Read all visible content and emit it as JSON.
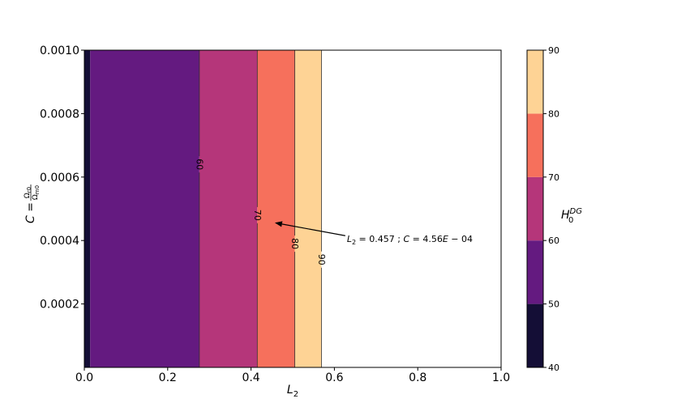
{
  "chart_data": {
    "type": "contourf",
    "x_label": {
      "base": "L",
      "sub": "2"
    },
    "y_label": {
      "prefix": "C =",
      "num_base": "Ω",
      "num_sub": "r0",
      "den_base": "Ω",
      "den_sub": "m0"
    },
    "colorbar_label": {
      "base": "H",
      "sub": "0",
      "sup": "DG"
    },
    "xlim": [
      0.0,
      1.0
    ],
    "ylim": [
      0.0,
      0.001
    ],
    "x_ticks": [
      {
        "value": 0.0,
        "label": "0.0"
      },
      {
        "value": 0.2,
        "label": "0.2"
      },
      {
        "value": 0.4,
        "label": "0.4"
      },
      {
        "value": 0.6,
        "label": "0.6"
      },
      {
        "value": 0.8,
        "label": "0.8"
      },
      {
        "value": 1.0,
        "label": "1.0"
      }
    ],
    "y_ticks": [
      {
        "value": 0.0002,
        "label": "0.0002"
      },
      {
        "value": 0.0004,
        "label": "0.0004"
      },
      {
        "value": 0.0006,
        "label": "0.0006"
      },
      {
        "value": 0.0008,
        "label": "0.0008"
      },
      {
        "value": 0.001,
        "label": "0.0010"
      }
    ],
    "bands": [
      {
        "name": "40-50",
        "x_start": 0.0,
        "x_end": 0.014,
        "color": "#140e36"
      },
      {
        "name": "50-60",
        "x_start": 0.014,
        "x_end": 0.276,
        "color": "#641a80"
      },
      {
        "name": "60-70",
        "x_start": 0.276,
        "x_end": 0.415,
        "color": "#b5367a"
      },
      {
        "name": "70-80",
        "x_start": 0.415,
        "x_end": 0.505,
        "color": "#f6705c"
      },
      {
        "name": "80-90",
        "x_start": 0.505,
        "x_end": 0.569,
        "color": "#fed395"
      }
    ],
    "contour_lines": [
      {
        "level": 60,
        "label": "60",
        "x": 0.276,
        "label_y": 0.00064
      },
      {
        "level": 70,
        "label": "70",
        "x": 0.415,
        "label_y": 0.00048
      },
      {
        "level": 80,
        "label": "80",
        "x": 0.505,
        "label_y": 0.00039
      },
      {
        "level": 90,
        "label": "90",
        "x": 0.569,
        "label_y": 0.00034
      }
    ],
    "annotation": {
      "point": [
        0.457,
        0.000456
      ],
      "text_L2_base": "L",
      "text_L2_sub": "2",
      "text_L2_value": " = 0.457 ; ",
      "text_C_base": "C",
      "text_C_value": " = 4.56",
      "text_E": "E",
      "text_exp": " − 04",
      "text_pos": [
        0.63,
        0.000405
      ]
    },
    "colorbar": {
      "range": [
        40,
        90
      ],
      "ticks": [
        40,
        50,
        60,
        70,
        80,
        90
      ],
      "levels": [
        {
          "from": 40,
          "to": 50,
          "color": "#140e36"
        },
        {
          "from": 50,
          "to": 60,
          "color": "#641a80"
        },
        {
          "from": 60,
          "to": 70,
          "color": "#b5367a"
        },
        {
          "from": 70,
          "to": 80,
          "color": "#f6705c"
        },
        {
          "from": 80,
          "to": 90,
          "color": "#fed395"
        }
      ]
    },
    "grid": false,
    "legend": "none"
  }
}
